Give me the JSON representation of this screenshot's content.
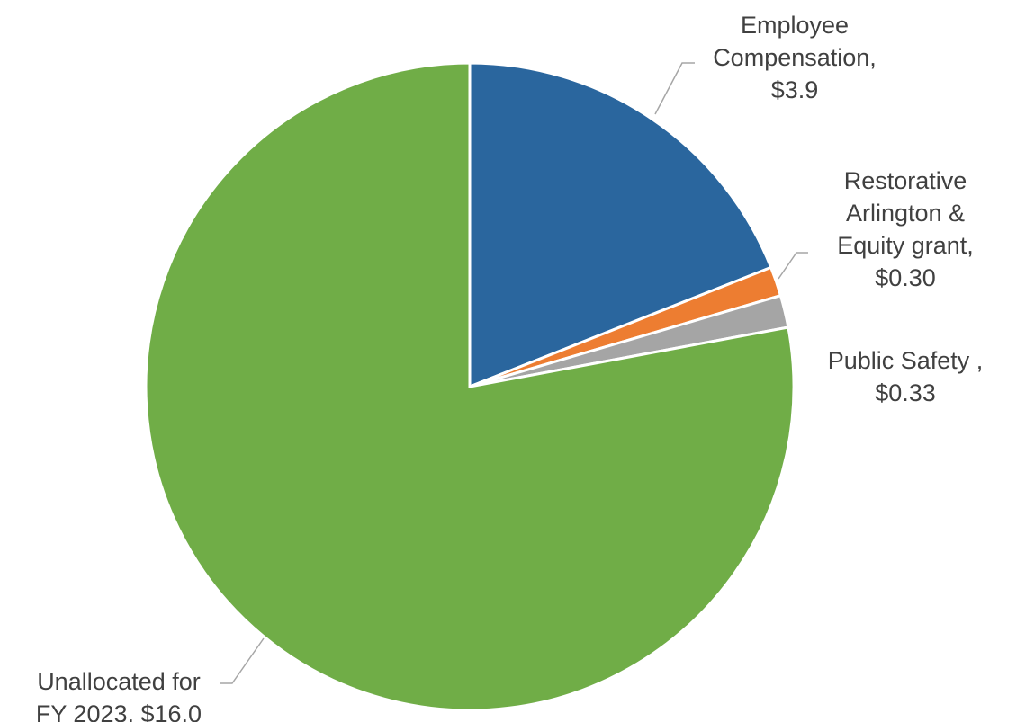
{
  "chart_data": {
    "type": "pie",
    "title": "",
    "start_angle_deg": 0,
    "direction": "clockwise",
    "slices": [
      {
        "name": "Employee Compensation",
        "value": 3.9,
        "color": "#2A669E",
        "label_lines": [
          "Employee",
          "Compensation,",
          "$3.9"
        ]
      },
      {
        "name": "Restorative Arlington & Equity grant",
        "value": 0.3,
        "color": "#ED7D31",
        "label_lines": [
          "Restorative",
          "Arlington &",
          "Equity grant,",
          "$0.30"
        ]
      },
      {
        "name": "Public Safety",
        "value": 0.33,
        "color": "#A5A5A5",
        "label_lines": [
          "Public Safety ,",
          "$0.33"
        ]
      },
      {
        "name": "Unallocated for FY 2023",
        "value": 16.0,
        "color": "#70AD47",
        "label_lines": [
          "Unallocated for",
          "FY 2023, $16.0"
        ]
      }
    ],
    "legend": "none",
    "data_labels": "outside-with-leader-lines"
  }
}
